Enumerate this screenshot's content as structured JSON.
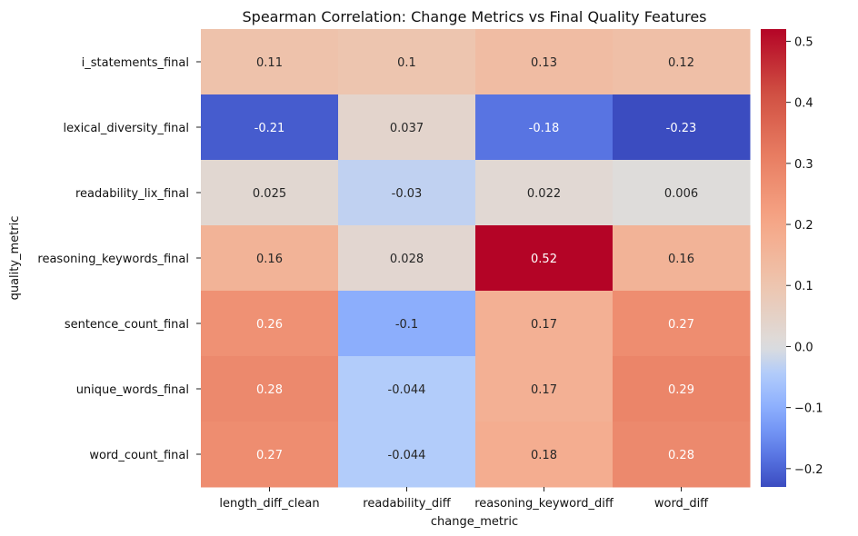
{
  "chart_data": {
    "type": "heatmap",
    "title": "Spearman Correlation: Change Metrics vs Final Quality Features",
    "xlabel": "change_metric",
    "ylabel": "quality_metric",
    "x_categories": [
      "length_diff_clean",
      "readability_diff",
      "reasoning_keyword_diff",
      "word_diff"
    ],
    "y_categories": [
      "i_statements_final",
      "lexical_diversity_final",
      "readability_lix_final",
      "reasoning_keywords_final",
      "sentence_count_final",
      "unique_words_final",
      "word_count_final"
    ],
    "values": [
      [
        0.11,
        0.1,
        0.13,
        0.12
      ],
      [
        -0.21,
        0.037,
        -0.18,
        -0.23
      ],
      [
        0.025,
        -0.03,
        0.022,
        0.006
      ],
      [
        0.16,
        0.028,
        0.52,
        0.16
      ],
      [
        0.26,
        -0.1,
        0.17,
        0.27
      ],
      [
        0.28,
        -0.044,
        0.17,
        0.29
      ],
      [
        0.27,
        -0.044,
        0.18,
        0.28
      ]
    ],
    "cell_labels": [
      [
        "0.11",
        "0.1",
        "0.13",
        "0.12"
      ],
      [
        "-0.21",
        "0.037",
        "-0.18",
        "-0.23"
      ],
      [
        "0.025",
        "-0.03",
        "0.022",
        "0.006"
      ],
      [
        "0.16",
        "0.028",
        "0.52",
        "0.16"
      ],
      [
        "0.26",
        "-0.1",
        "0.17",
        "0.27"
      ],
      [
        "0.28",
        "-0.044",
        "0.17",
        "0.29"
      ],
      [
        "0.27",
        "-0.044",
        "0.18",
        "0.28"
      ]
    ],
    "colormap": "coolwarm",
    "color_range": [
      -0.23,
      0.52
    ],
    "colorbar_ticks": [
      -0.2,
      -0.1,
      0.0,
      0.1,
      0.2,
      0.3,
      0.4,
      0.5
    ],
    "colorbar_tick_labels": [
      "−0.2",
      "−0.1",
      "0.0",
      "0.1",
      "0.2",
      "0.3",
      "0.4",
      "0.5"
    ],
    "colors": {
      "cold": "#3b4cc0",
      "neutral": "#dddddd",
      "hot": "#b40426"
    }
  }
}
